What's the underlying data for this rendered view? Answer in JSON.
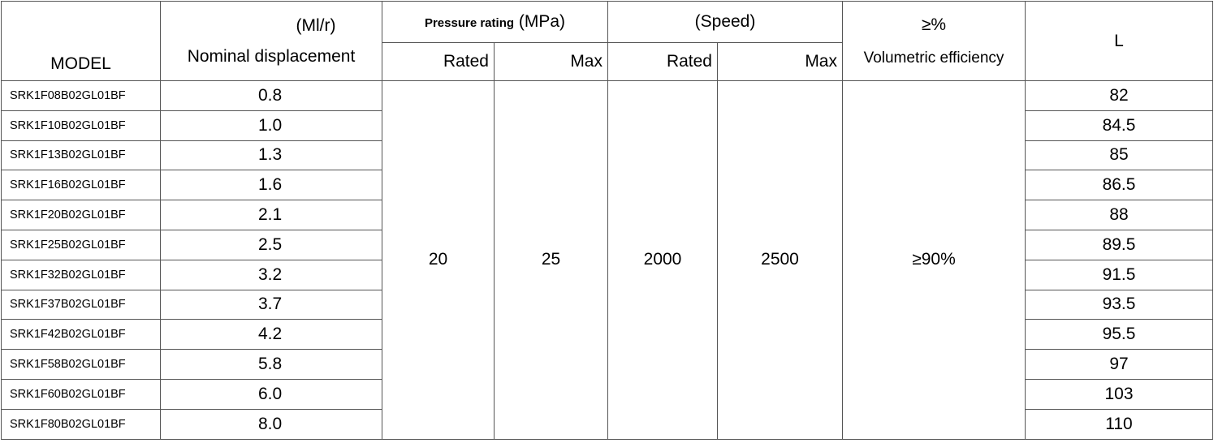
{
  "table": {
    "header": {
      "model": "MODEL",
      "displacement_unit": "(Ml/r)",
      "displacement": "Nominal displacement",
      "pressure_label": "Pressure rating",
      "pressure_unit": "(MPa)",
      "speed": "(Speed)",
      "efficiency_unit": "≥%",
      "efficiency": "Volumetric efficiency",
      "length": "L",
      "pressure_rated": "Rated",
      "pressure_max": "Max",
      "speed_rated": "Rated",
      "speed_max": "Max"
    },
    "shared": {
      "pressure_rated": "20",
      "pressure_max": "25",
      "speed_rated": "2000",
      "speed_max": "2500",
      "efficiency": "≥90%"
    },
    "rows": [
      [
        "SRK1F08B02GL01BF",
        "0.8",
        "82"
      ],
      [
        "SRK1F10B02GL01BF",
        "1.0",
        "84.5"
      ],
      [
        "SRK1F13B02GL01BF",
        "1.3",
        "85"
      ],
      [
        "SRK1F16B02GL01BF",
        "1.6",
        "86.5"
      ],
      [
        "SRK1F20B02GL01BF",
        "2.1",
        "88"
      ],
      [
        "SRK1F25B02GL01BF",
        "2.5",
        "89.5"
      ],
      [
        "SRK1F32B02GL01BF",
        "3.2",
        "91.5"
      ],
      [
        "SRK1F37B02GL01BF",
        "3.7",
        "93.5"
      ],
      [
        "SRK1F42B02GL01BF",
        "4.2",
        "95.5"
      ],
      [
        "SRK1F58B02GL01BF",
        "5.8",
        "97"
      ],
      [
        "SRK1F60B02GL01BF",
        "6.0",
        "103"
      ],
      [
        "SRK1F80B02GL01BF",
        "8.0",
        "110"
      ]
    ]
  }
}
